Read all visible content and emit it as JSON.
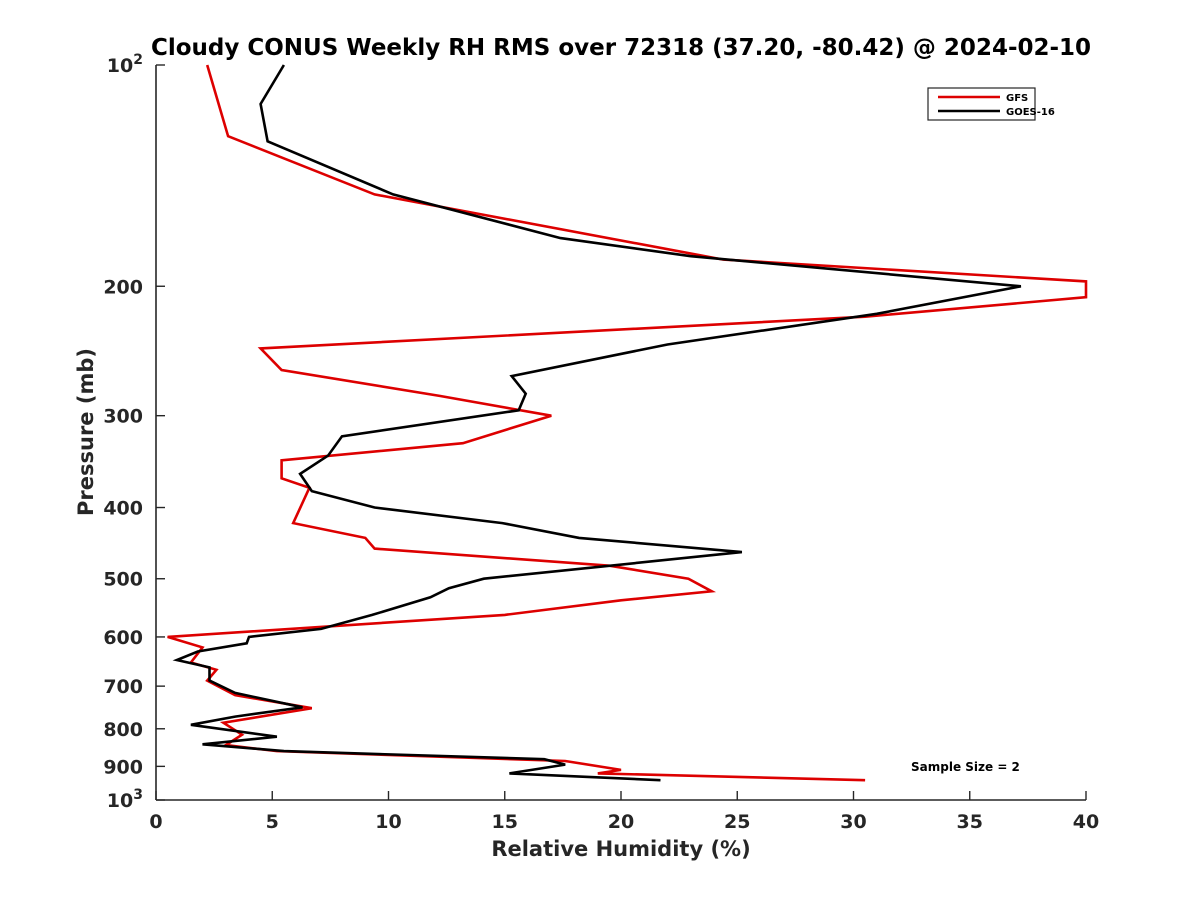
{
  "chart_data": {
    "type": "line",
    "title": "Cloudy CONUS Weekly RH RMS over 72318 (37.20, -80.42) @ 2024-02-10",
    "xlabel": "Relative Humidity (%)",
    "ylabel": "Pressure (mb)",
    "xlim": [
      0,
      40
    ],
    "ylim": [
      100,
      1000
    ],
    "yscale": "log",
    "y_reversed": true,
    "x_ticks": [
      0,
      5,
      10,
      15,
      20,
      25,
      30,
      35,
      40
    ],
    "x_tick_labels": [
      "0",
      "5",
      "10",
      "15",
      "20",
      "25",
      "30",
      "35",
      "40"
    ],
    "y_ticks": [
      100,
      200,
      300,
      400,
      500,
      600,
      700,
      800,
      900,
      1000
    ],
    "y_tick_labels": [
      {
        "base": "10",
        "exp": "2"
      },
      {
        "base": "200"
      },
      {
        "base": "300"
      },
      {
        "base": "400"
      },
      {
        "base": "500"
      },
      {
        "base": "600"
      },
      {
        "base": "700"
      },
      {
        "base": "800"
      },
      {
        "base": "900"
      },
      {
        "base": "10",
        "exp": "3"
      }
    ],
    "legend_position": "top-right",
    "annotation": "Sample Size = 2",
    "series": [
      {
        "name": "GFS",
        "color": "#dd0000",
        "points": [
          [
            2.2,
            100
          ],
          [
            3.1,
            125
          ],
          [
            9.4,
            150
          ],
          [
            24.4,
            184
          ],
          [
            40,
            197
          ],
          [
            40,
            207
          ],
          [
            30.5,
            220
          ],
          [
            4.5,
            243
          ],
          [
            5.4,
            260
          ],
          [
            12.2,
            282
          ],
          [
            17.0,
            300
          ],
          [
            13.2,
            327
          ],
          [
            5.4,
            345
          ],
          [
            5.4,
            365
          ],
          [
            6.6,
            376
          ],
          [
            5.9,
            420
          ],
          [
            9.0,
            440
          ],
          [
            9.4,
            455
          ],
          [
            19.5,
            480
          ],
          [
            22.9,
            500
          ],
          [
            23.9,
            520
          ],
          [
            20.0,
            535
          ],
          [
            15.0,
            560
          ],
          [
            0.5,
            600
          ],
          [
            2.0,
            620
          ],
          [
            1.5,
            650
          ],
          [
            2.6,
            665
          ],
          [
            2.2,
            688
          ],
          [
            3.4,
            720
          ],
          [
            6.7,
            750
          ],
          [
            2.9,
            785
          ],
          [
            3.7,
            815
          ],
          [
            3.0,
            842
          ],
          [
            5.2,
            858
          ],
          [
            17.6,
            885
          ],
          [
            20.0,
            910
          ],
          [
            19.0,
            920
          ],
          [
            30.5,
            940
          ]
        ]
      },
      {
        "name": "GOES-16",
        "color": "#000000",
        "points": [
          [
            5.5,
            100
          ],
          [
            4.5,
            113
          ],
          [
            4.8,
            127
          ],
          [
            10.2,
            150
          ],
          [
            17.4,
            172
          ],
          [
            23.0,
            182
          ],
          [
            37.2,
            200
          ],
          [
            31.0,
            218
          ],
          [
            22.0,
            240
          ],
          [
            15.3,
            265
          ],
          [
            15.9,
            280
          ],
          [
            15.6,
            295
          ],
          [
            8.0,
            320
          ],
          [
            7.4,
            340
          ],
          [
            6.2,
            360
          ],
          [
            6.7,
            380
          ],
          [
            9.4,
            400
          ],
          [
            14.9,
            420
          ],
          [
            18.2,
            440
          ],
          [
            25.2,
            460
          ],
          [
            14.1,
            500
          ],
          [
            12.6,
            515
          ],
          [
            11.8,
            530
          ],
          [
            9.3,
            560
          ],
          [
            7.1,
            585
          ],
          [
            4.0,
            600
          ],
          [
            3.9,
            612
          ],
          [
            1.8,
            628
          ],
          [
            0.9,
            645
          ],
          [
            2.3,
            660
          ],
          [
            2.3,
            688
          ],
          [
            3.4,
            715
          ],
          [
            6.3,
            748
          ],
          [
            3.4,
            770
          ],
          [
            1.5,
            790
          ],
          [
            5.2,
            820
          ],
          [
            2.0,
            840
          ],
          [
            5.5,
            858
          ],
          [
            16.7,
            880
          ],
          [
            17.6,
            895
          ],
          [
            15.2,
            920
          ],
          [
            21.7,
            940
          ]
        ]
      }
    ]
  }
}
